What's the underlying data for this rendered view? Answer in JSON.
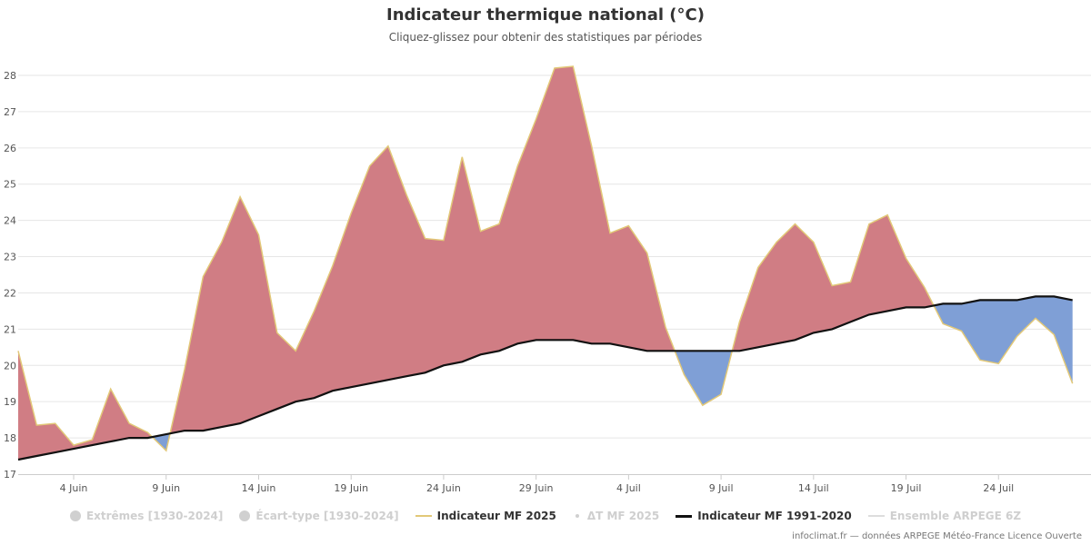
{
  "header": {
    "title": "Indicateur thermique national (°C)",
    "subtitle": "Cliquez-glissez pour obtenir des statistiques par périodes"
  },
  "legend": [
    {
      "label": "Extrêmes [1930-2024]",
      "symbol": "dot-large",
      "active": false
    },
    {
      "label": "Écart-type [1930-2024]",
      "symbol": "dot-large",
      "active": false
    },
    {
      "label": "Indicateur MF 2025",
      "symbol": "line-yellow",
      "active": true
    },
    {
      "label": "ΔT MF 2025",
      "symbol": "dot-small",
      "active": false
    },
    {
      "label": "Indicateur MF 1991-2020",
      "symbol": "line-black",
      "active": true
    },
    {
      "label": "Ensemble ARPEGE 6Z",
      "symbol": "line-grey",
      "active": false
    }
  ],
  "credits": "infoclimat.fr — données ARPEGE Météo-France Licence Ouverte",
  "colors": {
    "above": "#d07d84",
    "below": "#7f9fd6",
    "line2025": "#e2c878",
    "normal": "#111111",
    "grid": "#e6e6e6"
  },
  "chart_data": {
    "type": "area",
    "title": "Indicateur thermique national (°C)",
    "xlabel": "",
    "ylabel": "",
    "ylim": [
      17,
      28.5
    ],
    "yticks": [
      17,
      18,
      19,
      20,
      21,
      22,
      23,
      24,
      25,
      26,
      27,
      28
    ],
    "x_start": "1 Juin",
    "x_days": 59,
    "xticks": [
      {
        "day": 3,
        "label": "4 Juin"
      },
      {
        "day": 8,
        "label": "9 Juin"
      },
      {
        "day": 13,
        "label": "14 Juin"
      },
      {
        "day": 18,
        "label": "19 Juin"
      },
      {
        "day": 23,
        "label": "24 Juin"
      },
      {
        "day": 28,
        "label": "29 Juin"
      },
      {
        "day": 33,
        "label": "4 Juil"
      },
      {
        "day": 38,
        "label": "9 Juil"
      },
      {
        "day": 43,
        "label": "14 Juil"
      },
      {
        "day": 48,
        "label": "19 Juil"
      },
      {
        "day": 53,
        "label": "24 Juil"
      }
    ],
    "series": [
      {
        "name": "Indicateur MF 2025",
        "values": [
          20.4,
          18.35,
          18.4,
          17.8,
          17.95,
          19.35,
          18.4,
          18.15,
          17.65,
          19.9,
          22.45,
          23.4,
          24.65,
          23.6,
          20.9,
          20.4,
          21.5,
          22.75,
          24.2,
          25.5,
          26.05,
          24.7,
          23.5,
          23.45,
          25.75,
          23.7,
          23.9,
          25.5,
          26.8,
          28.2,
          28.25,
          26.05,
          23.65,
          23.85,
          23.1,
          21.05,
          19.75,
          18.9,
          19.2,
          21.2,
          22.7,
          23.4,
          23.9,
          23.4,
          22.2,
          22.3,
          23.9,
          24.15,
          22.95,
          22.15,
          21.15,
          20.95,
          20.15,
          20.05,
          20.8,
          21.3,
          20.85,
          19.5
        ]
      },
      {
        "name": "Indicateur MF 1991-2020",
        "values": [
          17.4,
          17.5,
          17.6,
          17.7,
          17.8,
          17.9,
          18.0,
          18.0,
          18.1,
          18.2,
          18.2,
          18.3,
          18.4,
          18.6,
          18.8,
          19.0,
          19.1,
          19.3,
          19.4,
          19.5,
          19.6,
          19.7,
          19.8,
          20.0,
          20.1,
          20.3,
          20.4,
          20.6,
          20.7,
          20.7,
          20.7,
          20.6,
          20.6,
          20.5,
          20.4,
          20.4,
          20.4,
          20.4,
          20.4,
          20.4,
          20.5,
          20.6,
          20.7,
          20.9,
          21.0,
          21.2,
          21.4,
          21.5,
          21.6,
          21.6,
          21.7,
          21.7,
          21.8,
          21.8,
          21.8,
          21.9,
          21.9,
          21.8
        ]
      }
    ]
  }
}
